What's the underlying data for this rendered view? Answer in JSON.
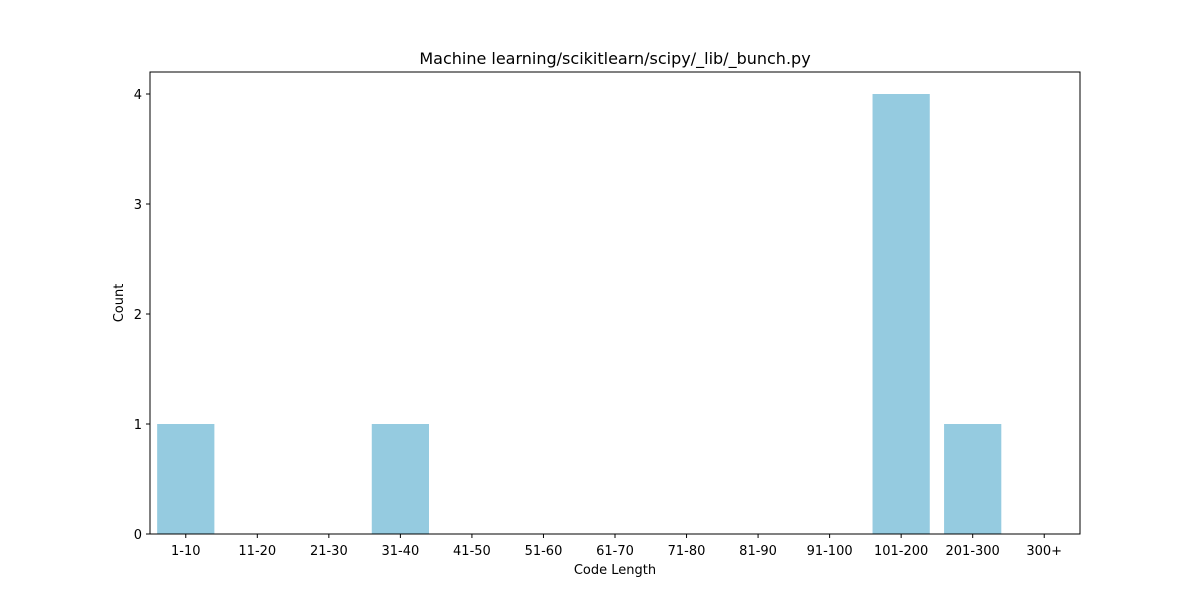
{
  "chart_data": {
    "type": "bar",
    "title": "Machine learning/scikitlearn/scipy/_lib/_bunch.py",
    "xlabel": "Code Length",
    "ylabel": "Count",
    "categories": [
      "1-10",
      "11-20",
      "21-30",
      "31-40",
      "41-50",
      "51-60",
      "61-70",
      "71-80",
      "81-90",
      "91-100",
      "101-200",
      "201-300",
      "300+"
    ],
    "values": [
      1,
      0,
      0,
      1,
      0,
      0,
      0,
      0,
      0,
      0,
      4,
      1,
      0
    ],
    "ylim": [
      0,
      4.2
    ],
    "yticks": [
      0,
      1,
      2,
      3,
      4
    ],
    "grid": false,
    "bar_color": "#95cbe0"
  }
}
